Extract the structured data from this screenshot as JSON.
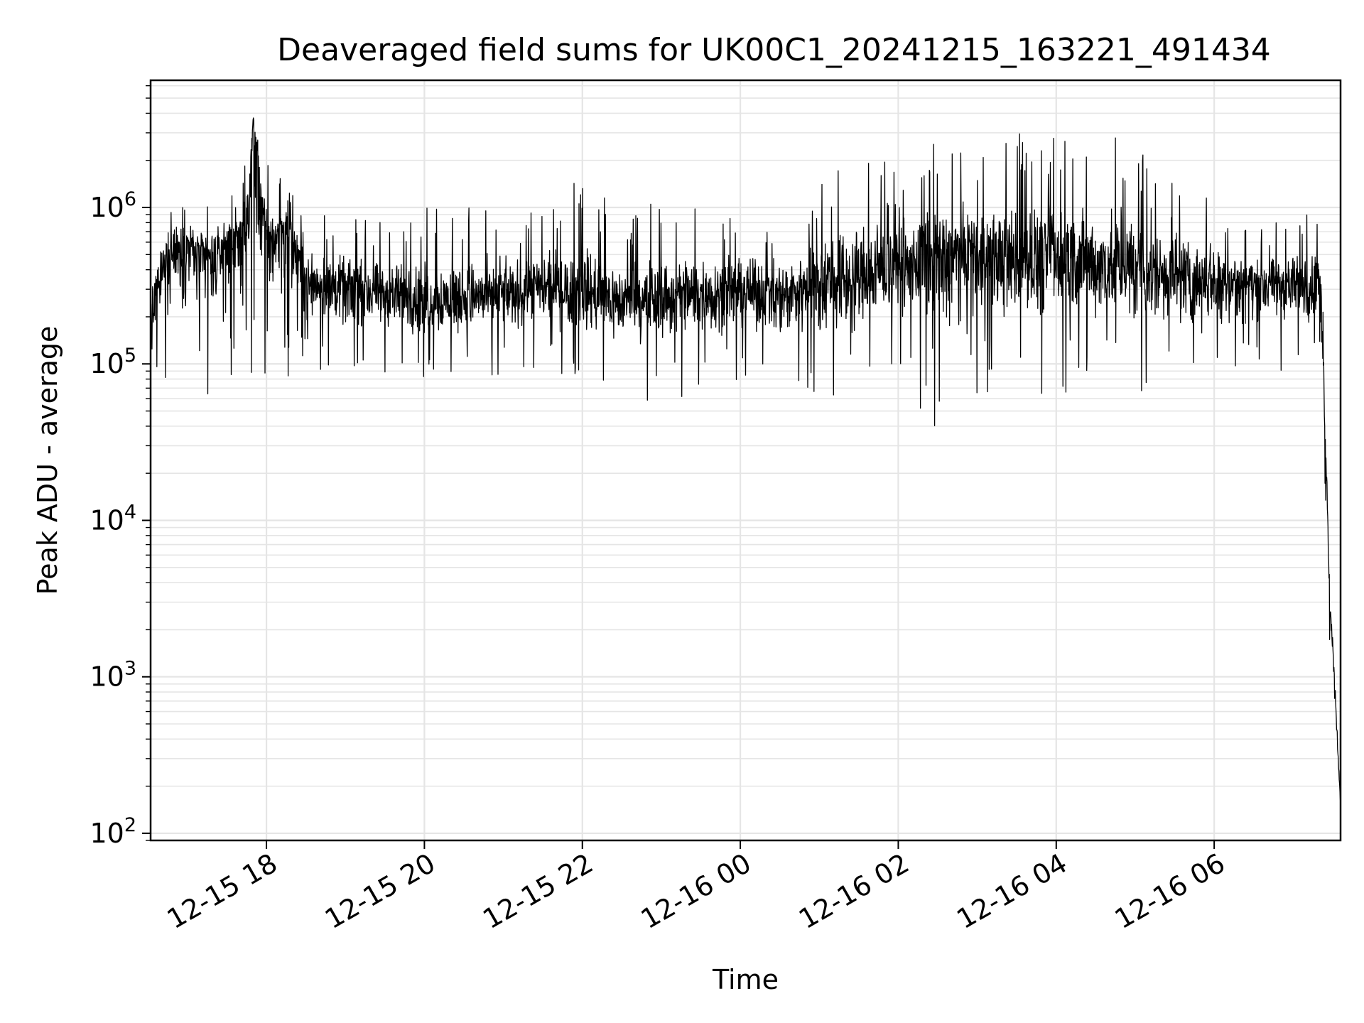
{
  "chart_data": {
    "type": "line",
    "title": "Deaveraged field sums for UK00C1_20241215_163221_491434",
    "xlabel": "Time",
    "ylabel": "Peak ADU - average",
    "yscale": "log",
    "ylim": [
      90,
      6500000
    ],
    "xlim": [
      "2024-12-15 16:32",
      "2024-12-16 07:36"
    ],
    "grid": true,
    "line_color": "#000000",
    "grid_color": "#e5e5e5",
    "x_ticks": [
      "2024-12-15 18:00",
      "2024-12-15 20:00",
      "2024-12-15 22:00",
      "2024-12-16 00:00",
      "2024-12-16 02:00",
      "2024-12-16 04:00",
      "2024-12-16 06:00"
    ],
    "x_tick_labels": [
      "12-15 18",
      "12-15 20",
      "12-15 22",
      "12-16 00",
      "12-16 02",
      "12-16 04",
      "12-16 06"
    ],
    "y_ticks": [
      100,
      1000,
      10000,
      100000,
      1000000
    ],
    "y_tick_labels": [
      {
        "base": "10",
        "exp": "2"
      },
      {
        "base": "10",
        "exp": "3"
      },
      {
        "base": "10",
        "exp": "4"
      },
      {
        "base": "10",
        "exp": "5"
      },
      {
        "base": "10",
        "exp": "6"
      }
    ],
    "series": [
      {
        "x": [
          "2024-12-15 16:32",
          "2024-12-15 16:45",
          "2024-12-15 17:00",
          "2024-12-15 17:15",
          "2024-12-15 17:30",
          "2024-12-15 17:45",
          "2024-12-15 17:50",
          "2024-12-15 18:00",
          "2024-12-15 18:15",
          "2024-12-15 18:30",
          "2024-12-15 19:00",
          "2024-12-15 19:30",
          "2024-12-15 20:00",
          "2024-12-15 20:30",
          "2024-12-15 21:00",
          "2024-12-15 21:30",
          "2024-12-15 22:00",
          "2024-12-15 22:30",
          "2024-12-15 23:00",
          "2024-12-15 23:30",
          "2024-12-16 00:00",
          "2024-12-16 00:30",
          "2024-12-16 01:00",
          "2024-12-16 01:30",
          "2024-12-16 02:00",
          "2024-12-16 02:30",
          "2024-12-16 03:00",
          "2024-12-16 03:30",
          "2024-12-16 04:00",
          "2024-12-16 04:30",
          "2024-12-16 05:00",
          "2024-12-16 05:30",
          "2024-12-16 06:00",
          "2024-12-16 06:30",
          "2024-12-16 07:00",
          "2024-12-16 07:15",
          "2024-12-16 07:20",
          "2024-12-16 07:24",
          "2024-12-16 07:28",
          "2024-12-16 07:32",
          "2024-12-16 07:36"
        ],
        "y": [
          200000,
          500000,
          600000,
          450000,
          550000,
          700000,
          3800000,
          600000,
          800000,
          350000,
          300000,
          280000,
          250000,
          260000,
          280000,
          300000,
          290000,
          250000,
          260000,
          280000,
          300000,
          280000,
          330000,
          350000,
          420000,
          480000,
          500000,
          450000,
          480000,
          420000,
          400000,
          380000,
          350000,
          330000,
          320000,
          300000,
          380000,
          60000,
          3000,
          800,
          150
        ],
        "max": [
          700000,
          1300000,
          1300000,
          1500000,
          1600000,
          2000000,
          3800000,
          1900000,
          1400000,
          900000,
          900000,
          800000,
          1100000,
          1100000,
          900000,
          1000000,
          1600000,
          900000,
          1200000,
          1100000,
          900000,
          800000,
          1600000,
          2900000,
          1600000,
          2900000,
          3000000,
          3000000,
          3200000,
          3500000,
          2700000,
          1700000,
          1300000,
          700000,
          900000,
          1200000,
          1200000,
          100000,
          3200,
          1000,
          150
        ],
        "min": [
          55000,
          80000,
          70000,
          60000,
          60000,
          65000,
          70000,
          70000,
          80000,
          100000,
          80000,
          85000,
          80000,
          80000,
          80000,
          90000,
          80000,
          55000,
          60000,
          60000,
          80000,
          60000,
          55000,
          60000,
          90000,
          32000,
          60000,
          70000,
          60000,
          80000,
          60000,
          60000,
          70000,
          80000,
          90000,
          100000,
          150000,
          15000,
          1300,
          400,
          150
        ]
      }
    ]
  }
}
